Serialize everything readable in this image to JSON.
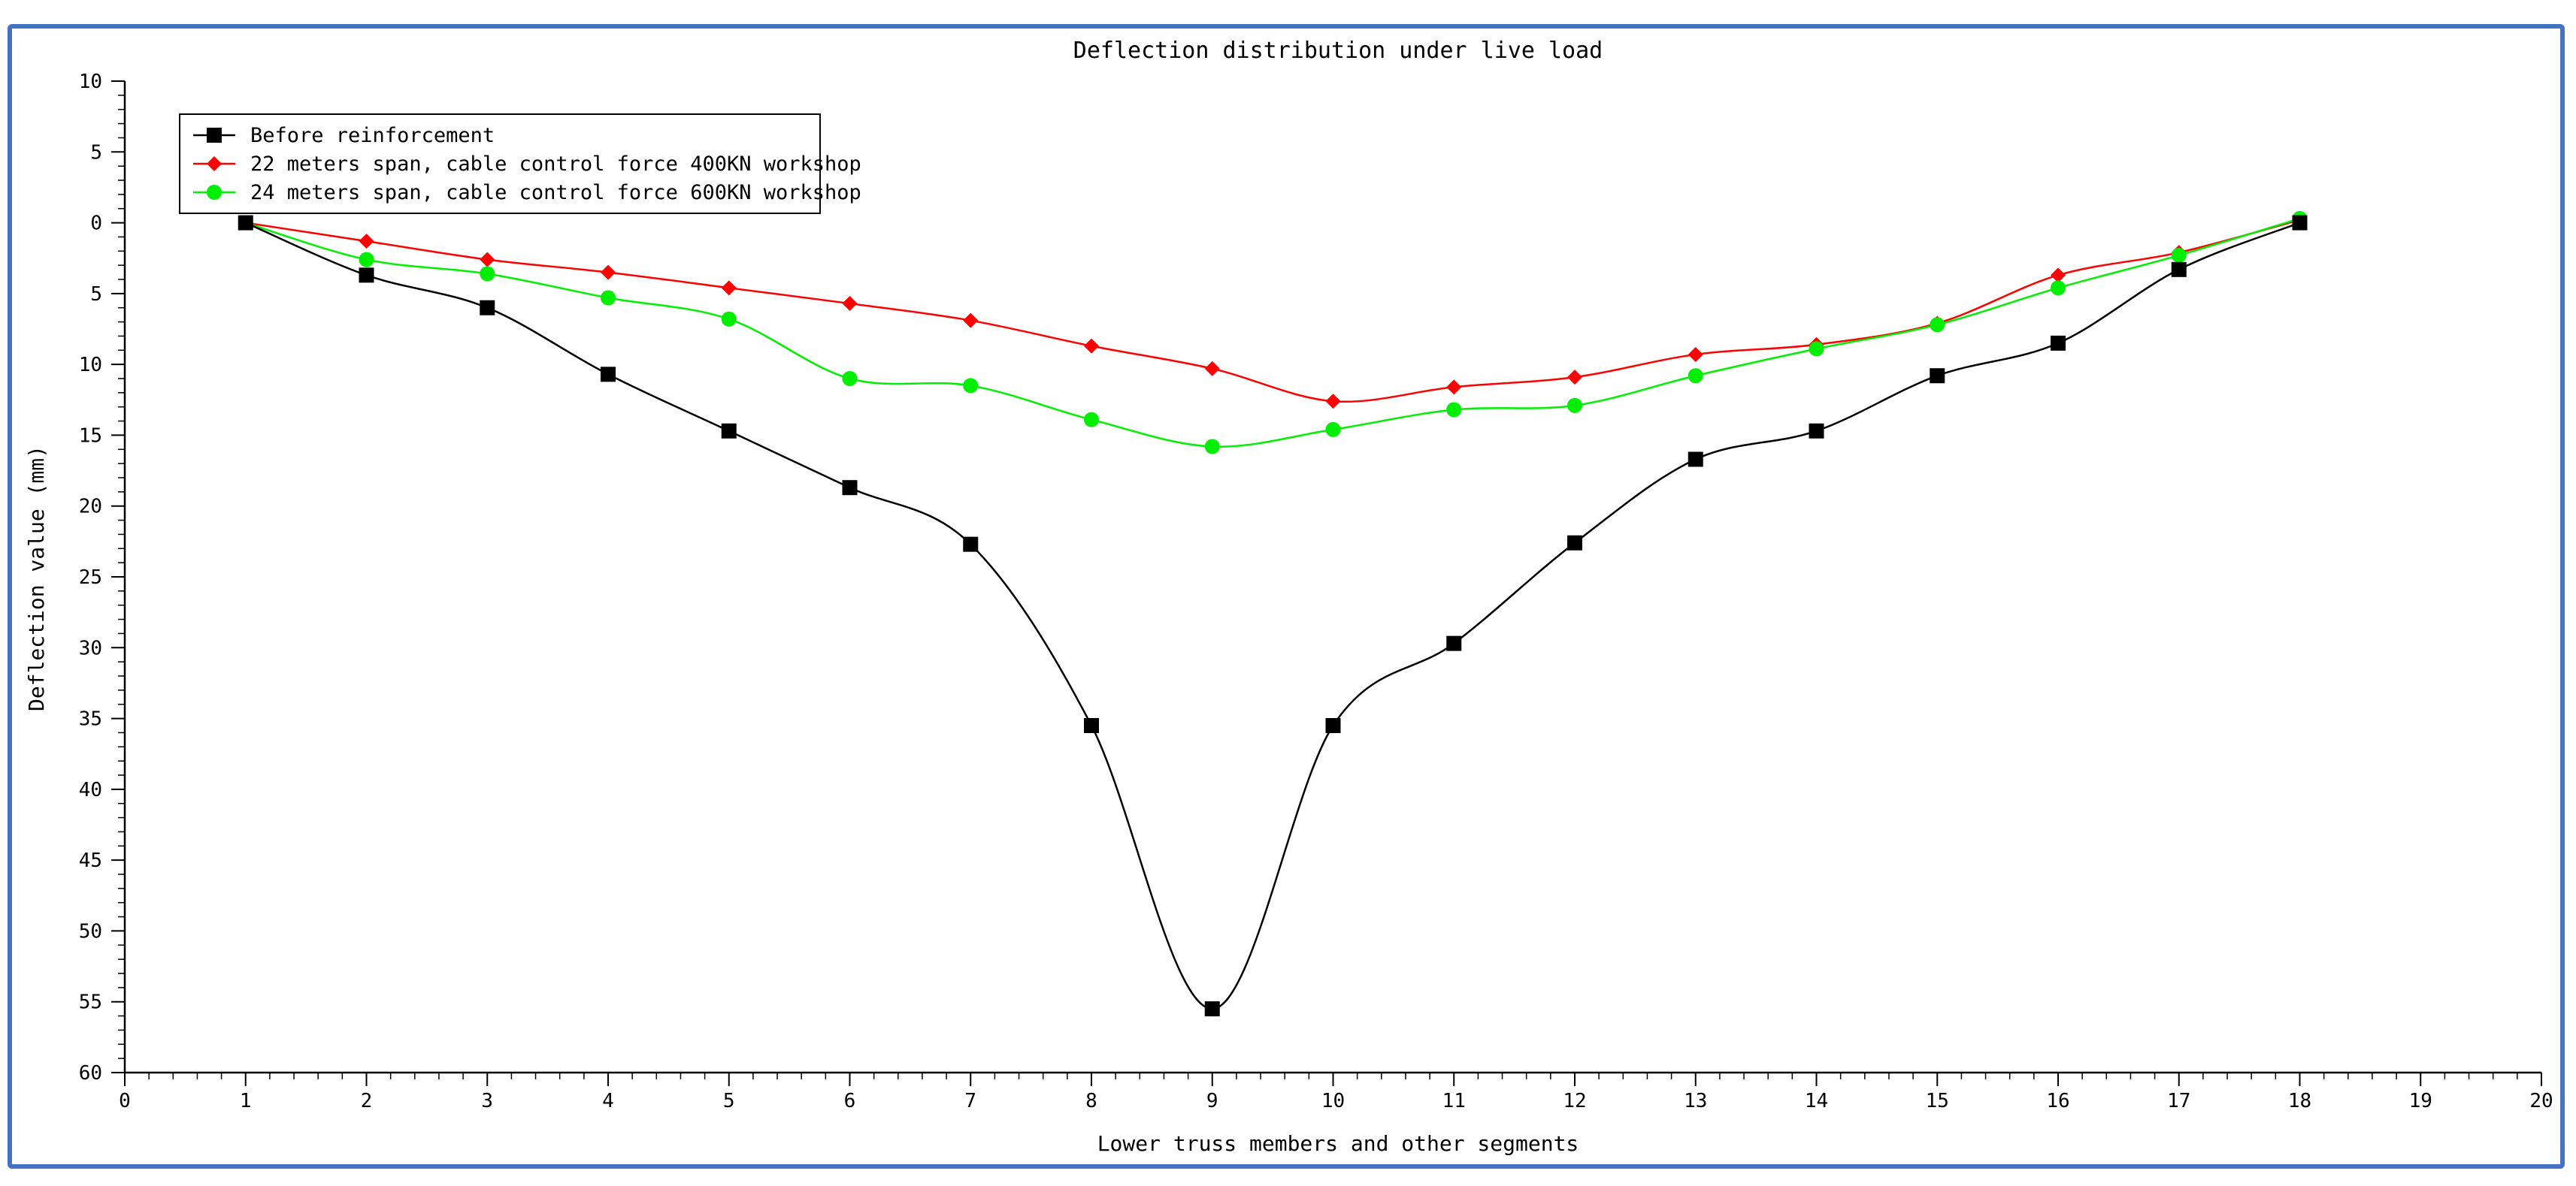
{
  "chart_data": {
    "type": "line",
    "title": "Deflection distribution under live load",
    "xlabel": "Lower truss members and other segments",
    "ylabel": "Deflection value (mm)",
    "xlim": [
      0,
      20
    ],
    "ylim": [
      -10,
      60
    ],
    "y_inverted": true,
    "x_ticks": [
      0,
      1,
      2,
      3,
      4,
      5,
      6,
      7,
      8,
      9,
      10,
      11,
      12,
      13,
      14,
      15,
      16,
      17,
      18,
      19,
      20
    ],
    "y_ticks": [
      -10,
      -5,
      0,
      5,
      10,
      15,
      20,
      25,
      30,
      35,
      40,
      45,
      50,
      55,
      60
    ],
    "y_tick_labels": [
      "10",
      "5",
      "0",
      "5",
      "10",
      "15",
      "20",
      "25",
      "30",
      "35",
      "40",
      "45",
      "50",
      "55",
      "60"
    ],
    "grid": false,
    "legend_position": "top-left",
    "x": [
      1,
      2,
      3,
      4,
      5,
      6,
      7,
      8,
      9,
      10,
      11,
      12,
      13,
      14,
      15,
      16,
      17,
      18
    ],
    "series": [
      {
        "name": "Before reinforcement",
        "color": "#000000",
        "marker": "square",
        "values": [
          0,
          3.7,
          6.0,
          10.7,
          14.7,
          18.7,
          22.7,
          35.5,
          55.5,
          35.5,
          29.7,
          22.6,
          16.7,
          14.7,
          10.8,
          8.5,
          3.3,
          0
        ]
      },
      {
        "name": "22 meters span, cable control force 400KN workshop",
        "color": "#ff0000",
        "marker": "diamond",
        "values": [
          0,
          1.3,
          2.6,
          3.5,
          4.6,
          5.7,
          6.9,
          8.7,
          10.3,
          12.6,
          11.6,
          10.9,
          9.3,
          8.6,
          7.1,
          3.7,
          2.1,
          -0.2
        ]
      },
      {
        "name": "24 meters span, cable control force 600KN workshop",
        "color": "#00ee00",
        "marker": "circle",
        "values": [
          0,
          2.6,
          3.6,
          5.3,
          6.8,
          11.0,
          11.5,
          13.9,
          15.8,
          14.6,
          13.2,
          12.9,
          10.8,
          8.9,
          7.2,
          4.6,
          2.3,
          -0.3
        ]
      }
    ]
  }
}
